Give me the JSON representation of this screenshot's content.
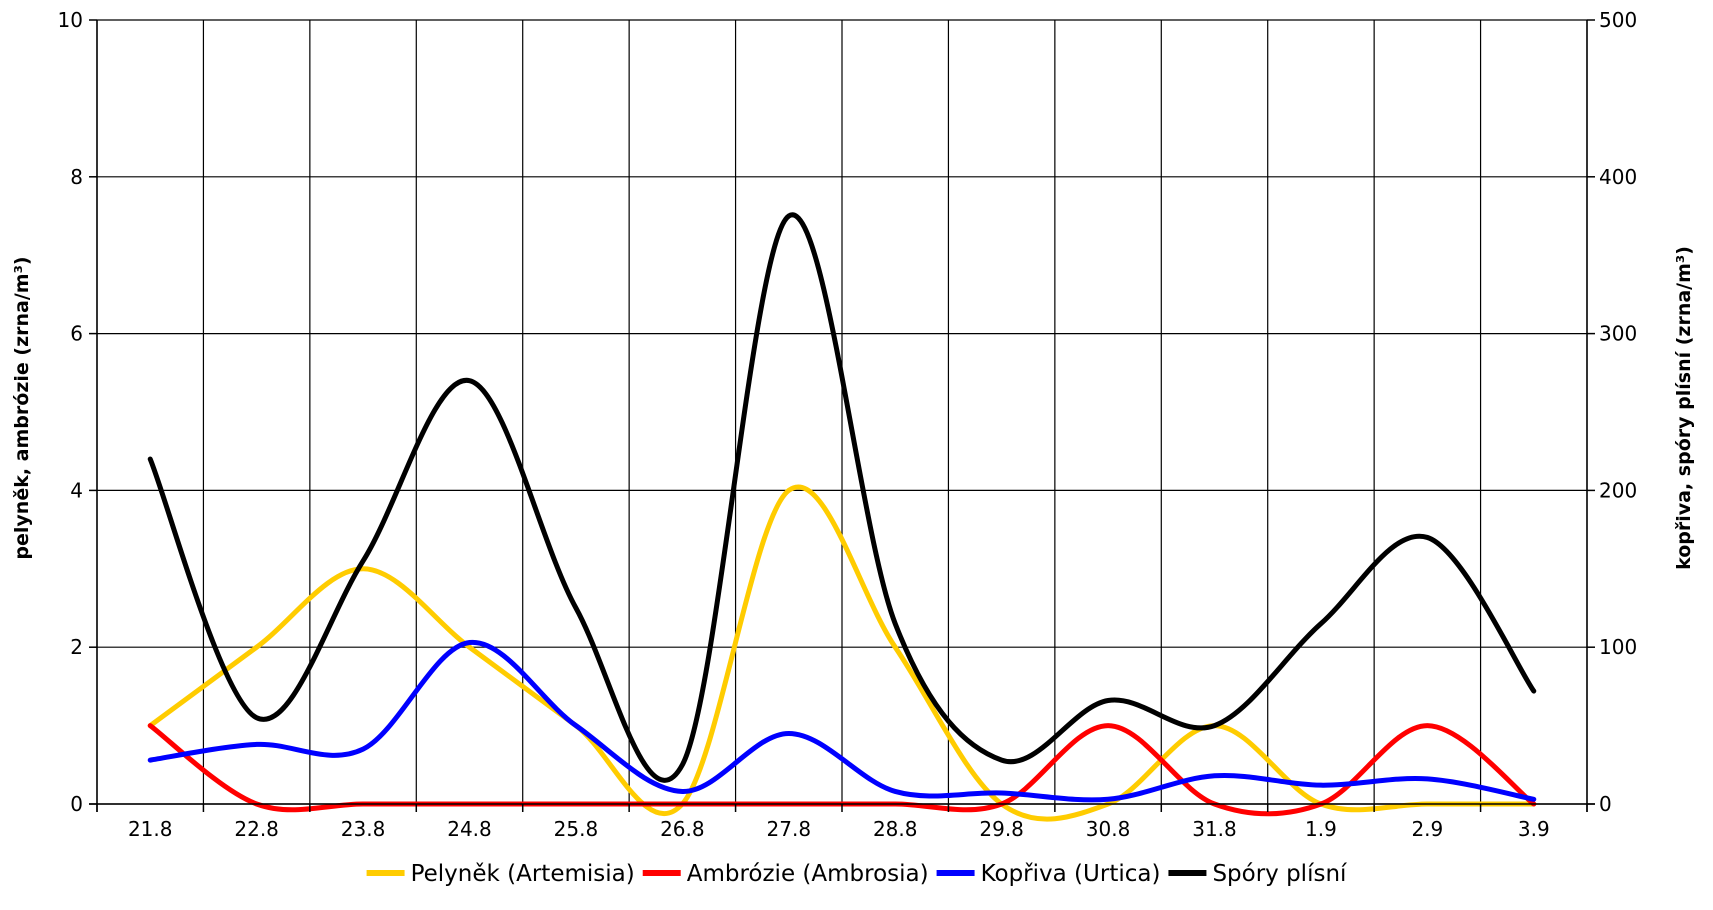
{
  "chart_data": {
    "type": "line",
    "title": "",
    "x": [
      "21.8",
      "22.8",
      "23.8",
      "24.8",
      "25.8",
      "26.8",
      "27.8",
      "28.8",
      "29.8",
      "30.8",
      "31.8",
      "1.9",
      "2.9",
      "3.9"
    ],
    "ylabel_left": "pelyněk, ambrózie (zrna/m³)",
    "ylabel_right": "kopřiva, spóry plísní (zrna/m³)",
    "ylim_left": [
      0,
      10
    ],
    "yticks_left": [
      0,
      2,
      4,
      6,
      8,
      10
    ],
    "ylim_right": [
      0,
      500
    ],
    "yticks_right": [
      0,
      100,
      200,
      300,
      400,
      500
    ],
    "grid": true,
    "legend_position": "bottom",
    "series": [
      {
        "name": "Pelyněk (Artemisia)",
        "axis": "left",
        "color": "#FFCC00",
        "values": [
          1,
          2,
          3,
          2,
          1,
          0,
          4,
          2,
          0,
          0,
          1,
          0,
          0,
          0
        ]
      },
      {
        "name": "Ambrózie (Ambrosia)",
        "axis": "left",
        "color": "#FF0000",
        "values": [
          1,
          0,
          0,
          0,
          0,
          0,
          0,
          0,
          0,
          1,
          0,
          0,
          1,
          0
        ]
      },
      {
        "name": "Kopřiva (Urtica)",
        "axis": "right",
        "color": "#0000FF",
        "values": [
          28,
          38,
          35,
          103,
          50,
          8,
          45,
          8,
          7,
          3,
          18,
          12,
          16,
          3
        ]
      },
      {
        "name": "Spóry plísní",
        "axis": "right",
        "color": "#000000",
        "values": [
          220,
          55,
          155,
          270,
          125,
          25,
          375,
          115,
          28,
          66,
          50,
          115,
          170,
          72
        ]
      }
    ]
  }
}
